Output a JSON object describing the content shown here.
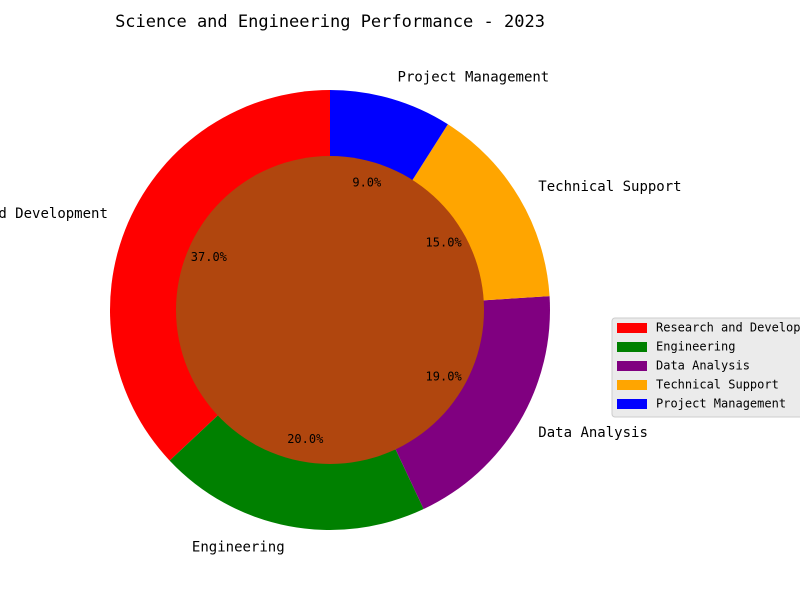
{
  "chart_data": {
    "type": "pie",
    "style": "donut",
    "title": "Science and Engineering Performance - 2023",
    "categories": [
      "Research and Development",
      "Engineering",
      "Data Analysis",
      "Technical Support",
      "Project Management"
    ],
    "values": [
      37.0,
      20.0,
      19.0,
      15.0,
      9.0
    ],
    "value_labels": [
      "37.0%",
      "20.0%",
      "19.0%",
      "15.0%",
      "9.0%"
    ],
    "colors": [
      "#ff0000",
      "#008000",
      "#800080",
      "#ffa500",
      "#0000ff"
    ],
    "center_color": "#b0460e",
    "start_angle_deg": 90,
    "direction": "counterclockwise",
    "legend": {
      "placement": "right",
      "entries": [
        "Research and Developm",
        "Engineering",
        "Data Analysis",
        "Technical Support",
        "Project Management"
      ]
    }
  }
}
